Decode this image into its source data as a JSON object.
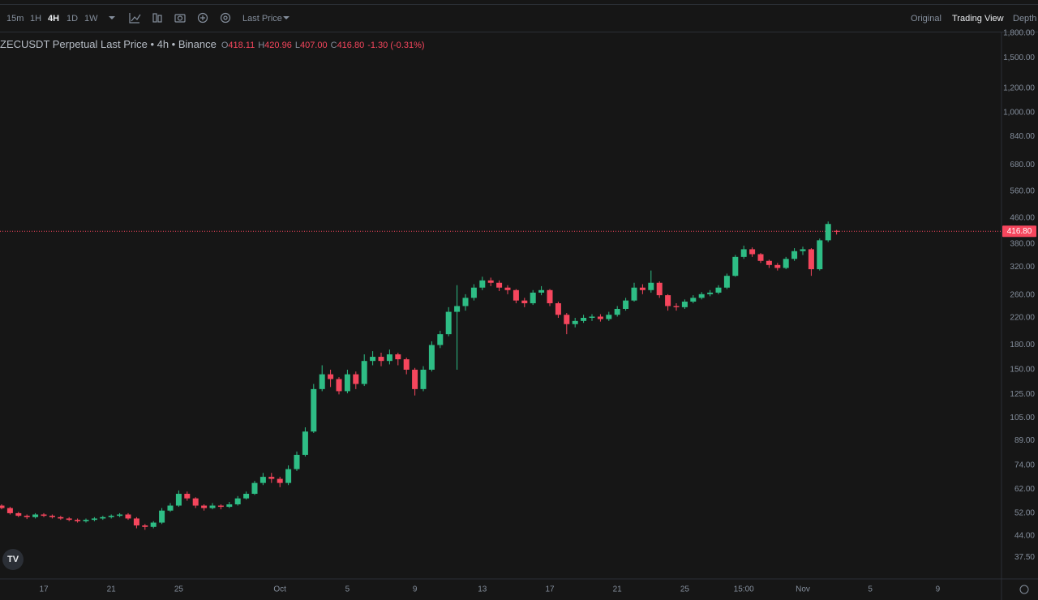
{
  "toolbar": {
    "intervals": [
      "15m",
      "1H",
      "4H",
      "1D",
      "1W"
    ],
    "price_type": "Last Price",
    "views": [
      "Original",
      "Trading View",
      "Depth"
    ]
  },
  "legend": {
    "symbol": "ZECUSDT Perpetual Last Price • 4h • Binance",
    "ohlc": [
      {
        "label": "O",
        "value": "418.11"
      },
      {
        "label": "H",
        "value": "420.96"
      },
      {
        "label": "L",
        "value": "407.00"
      },
      {
        "label": "C",
        "value": "416.80"
      }
    ],
    "change": "-1.30 (-0.31%)"
  },
  "chart_data": {
    "type": "candlestick",
    "log_scale": true,
    "grid": false,
    "up_color": "#2ebd85",
    "down_color": "#f6465d",
    "categories": [
      null,
      null,
      null,
      null,
      null,
      "17",
      null,
      null,
      null,
      null,
      null,
      null,
      null,
      "21",
      null,
      null,
      null,
      null,
      null,
      null,
      null,
      "25",
      null,
      null,
      null,
      null,
      null,
      null,
      null,
      null,
      null,
      null,
      null,
      "Oct",
      null,
      null,
      null,
      null,
      null,
      null,
      null,
      "5",
      null,
      null,
      null,
      null,
      null,
      null,
      null,
      "9",
      null,
      null,
      null,
      null,
      null,
      null,
      null,
      "13",
      null,
      null,
      null,
      null,
      null,
      null,
      null,
      "17",
      null,
      null,
      null,
      null,
      null,
      null,
      null,
      "21",
      null,
      null,
      null,
      null,
      null,
      null,
      null,
      "25",
      null,
      null,
      null,
      null,
      null,
      null,
      "15:00",
      null,
      null,
      null,
      null,
      null,
      null,
      "Nov",
      null,
      null,
      null,
      null,
      null,
      null,
      null,
      "5",
      null,
      null,
      null,
      null,
      null,
      null,
      null,
      "9",
      null,
      null,
      null,
      null,
      null,
      null,
      null,
      null
    ],
    "open": [
      55,
      54,
      52,
      51,
      50.5,
      51.5,
      51,
      50.5,
      50,
      49.5,
      49,
      49.5,
      50,
      50.5,
      51,
      51.5,
      50,
      47.5,
      47,
      48.5,
      53,
      55,
      60,
      58,
      55,
      54,
      55,
      54.5,
      55.5,
      58,
      60,
      65,
      68,
      67,
      65,
      72,
      80,
      95,
      130,
      145,
      140,
      128,
      145,
      135,
      160,
      165,
      160,
      168,
      162,
      150,
      130,
      150,
      180,
      195,
      230,
      240,
      255,
      275,
      290,
      285,
      275,
      270,
      250,
      245,
      265,
      270,
      245,
      225,
      210,
      215,
      220,
      222,
      218,
      225,
      235,
      250,
      275,
      270,
      285,
      260,
      240,
      238,
      248,
      255,
      262,
      265,
      275,
      300,
      345,
      365,
      352,
      335,
      325,
      318,
      340,
      360,
      365,
      315,
      390,
      418.11,
      null,
      null,
      null,
      null,
      null,
      null,
      null,
      null,
      null,
      null,
      null,
      null,
      null,
      null,
      null,
      null,
      null,
      null,
      null,
      null
    ],
    "high": [
      55.5,
      54.5,
      52.5,
      51.5,
      52,
      52,
      51.5,
      51,
      50.5,
      50,
      50,
      50.5,
      51,
      51.5,
      52,
      52,
      50.5,
      48,
      49,
      54,
      56,
      61.5,
      61,
      58.5,
      55.5,
      56,
      55.5,
      56.5,
      59,
      61,
      66,
      70,
      70,
      68,
      74,
      82,
      98,
      135,
      155,
      150,
      142,
      150,
      148,
      168,
      172,
      170,
      174,
      170,
      164,
      152,
      154,
      185,
      200,
      238,
      280,
      262,
      282,
      298,
      296,
      290,
      280,
      272,
      255,
      270,
      278,
      272,
      248,
      228,
      220,
      225,
      226,
      226,
      230,
      240,
      255,
      285,
      282,
      312,
      288,
      262,
      245,
      252,
      260,
      266,
      270,
      280,
      305,
      350,
      375,
      370,
      355,
      338,
      330,
      345,
      368,
      372,
      368,
      395,
      448,
      420.96,
      null,
      null,
      null,
      null,
      null,
      null,
      null,
      null,
      null,
      null,
      null,
      null,
      null,
      null,
      null,
      null,
      null,
      null,
      null,
      null
    ],
    "low": [
      53.5,
      51.5,
      50.5,
      49.8,
      50,
      50.5,
      50,
      49.5,
      49,
      48.5,
      48.5,
      49,
      49.5,
      50,
      50.5,
      49.5,
      46.5,
      46,
      46.5,
      48,
      52.5,
      54.5,
      57,
      54,
      53,
      53.5,
      53.5,
      54,
      55,
      57.5,
      59.5,
      64,
      65,
      63,
      64,
      71,
      79,
      94,
      128,
      132,
      125,
      126,
      130,
      133,
      155,
      154,
      156,
      155,
      145,
      124,
      128,
      148,
      176,
      192,
      150,
      232,
      250,
      270,
      278,
      268,
      262,
      245,
      238,
      242,
      260,
      240,
      220,
      195,
      205,
      212,
      215,
      214,
      215,
      222,
      232,
      248,
      262,
      265,
      255,
      232,
      232,
      235,
      245,
      252,
      258,
      262,
      272,
      298,
      340,
      345,
      330,
      318,
      312,
      315,
      335,
      350,
      300,
      312,
      385,
      407,
      null,
      null,
      null,
      null,
      null,
      null,
      null,
      null,
      null,
      null,
      null,
      null,
      null,
      null,
      null,
      null,
      null,
      null,
      null,
      null
    ],
    "close": [
      54,
      52,
      51,
      50.5,
      51.5,
      51,
      50.5,
      50,
      49.5,
      49,
      49.5,
      50,
      50.5,
      51,
      51.5,
      50,
      47.5,
      47,
      48.5,
      53,
      55,
      60,
      58,
      55,
      54,
      55,
      54.5,
      55.5,
      58,
      60,
      65,
      68,
      67,
      65,
      72,
      80,
      95,
      130,
      145,
      140,
      128,
      145,
      135,
      160,
      165,
      160,
      168,
      162,
      150,
      130,
      150,
      180,
      195,
      230,
      240,
      255,
      275,
      290,
      285,
      275,
      270,
      250,
      245,
      265,
      270,
      245,
      225,
      210,
      215,
      220,
      222,
      218,
      225,
      235,
      250,
      275,
      270,
      285,
      260,
      240,
      238,
      248,
      255,
      262,
      265,
      275,
      300,
      345,
      365,
      352,
      335,
      325,
      318,
      340,
      360,
      365,
      315,
      390,
      440,
      416.8,
      null,
      null,
      null,
      null,
      null,
      null,
      null,
      null,
      null,
      null,
      null,
      null,
      null,
      null,
      null,
      null,
      null,
      null,
      null,
      null
    ],
    "ylim": [
      32,
      1810
    ],
    "yticks": [
      {
        "value": 37.5,
        "label": "37.50"
      },
      {
        "value": 44,
        "label": "44.00"
      },
      {
        "value": 52,
        "label": "52.00"
      },
      {
        "value": 62,
        "label": "62.00"
      },
      {
        "value": 74,
        "label": "74.00"
      },
      {
        "value": 89,
        "label": "89.00"
      },
      {
        "value": 105,
        "label": "105.00"
      },
      {
        "value": 125,
        "label": "125.00"
      },
      {
        "value": 150,
        "label": "150.00"
      },
      {
        "value": 180,
        "label": "180.00"
      },
      {
        "value": 220,
        "label": "220.00"
      },
      {
        "value": 260,
        "label": "260.00"
      },
      {
        "value": 320,
        "label": "320.00"
      },
      {
        "value": 380,
        "label": "380.00"
      },
      {
        "value": 460,
        "label": "460.00"
      },
      {
        "value": 560,
        "label": "560.00"
      },
      {
        "value": 680,
        "label": "680.00"
      },
      {
        "value": 840,
        "label": "840.00"
      },
      {
        "value": 1000,
        "label": "1,000.00"
      },
      {
        "value": 1200,
        "label": "1,200.00"
      },
      {
        "value": 1500,
        "label": "1,500.00"
      },
      {
        "value": 1800,
        "label": "1,800.00"
      }
    ],
    "last_price": {
      "value": 416.8,
      "label": "416.80",
      "color": "#f6465d"
    }
  }
}
